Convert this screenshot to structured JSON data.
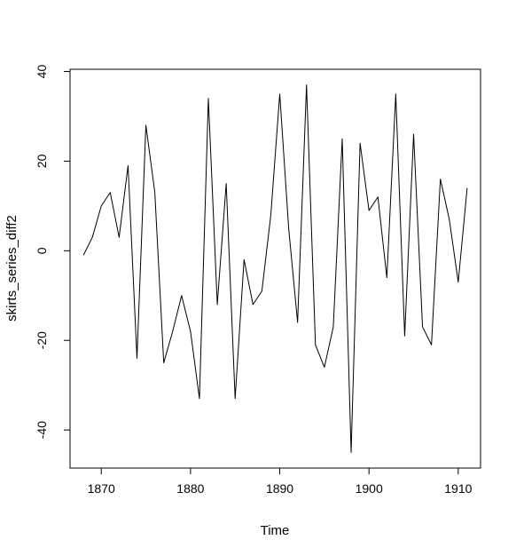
{
  "chart_data": {
    "type": "line",
    "xlabel": "Time",
    "ylabel": "skirts_series_diff2",
    "xlim": [
      1866.5,
      1912.5
    ],
    "ylim": [
      -48.5,
      40.5
    ],
    "x_ticks": [
      1870,
      1880,
      1890,
      1900,
      1910
    ],
    "x_tick_labels": [
      "1870",
      "1880",
      "1890",
      "1900",
      "1910"
    ],
    "y_ticks": [
      -40,
      -20,
      0,
      20,
      40
    ],
    "y_tick_labels": [
      "-40",
      "-20",
      "0",
      "20",
      "40"
    ],
    "grid": false,
    "line_color": "#000000",
    "series": [
      {
        "x": [
          1868,
          1869,
          1870,
          1871,
          1872,
          1873,
          1874,
          1875,
          1876,
          1877,
          1878,
          1879,
          1880,
          1881,
          1882,
          1883,
          1884,
          1885,
          1886,
          1887,
          1888,
          1889,
          1890,
          1891,
          1892,
          1893,
          1894,
          1895,
          1896,
          1897,
          1898,
          1899,
          1900,
          1901,
          1902,
          1903,
          1904,
          1905,
          1906,
          1907,
          1908,
          1909,
          1910,
          1911
        ],
        "values": [
          -1,
          3,
          10,
          13,
          3,
          19,
          -24,
          28,
          13,
          -25,
          -18,
          -10,
          -18,
          -33,
          34,
          -12,
          15,
          -33,
          -2,
          -12,
          -9,
          8,
          35,
          5,
          -16,
          37,
          -21,
          -26,
          -17,
          25,
          -45,
          24,
          9,
          12,
          -6,
          35,
          -19,
          26,
          -17,
          -21,
          16,
          7,
          -7,
          14
        ]
      }
    ]
  }
}
